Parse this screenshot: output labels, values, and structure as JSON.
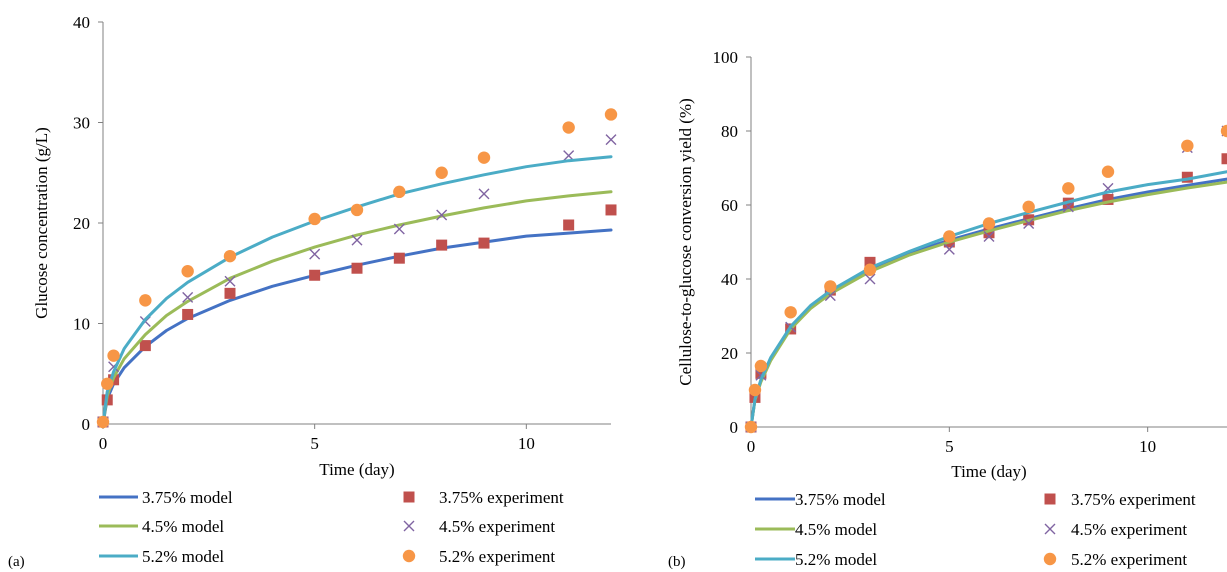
{
  "colors": {
    "s375": "#4472C4",
    "s45": "#9BBB59",
    "s52": "#4BACC6",
    "exp375": "#C0504D",
    "exp45": "#8064A2",
    "exp52": "#F79646"
  },
  "chart_data": [
    {
      "type": "scatter",
      "panel_label": "(a)",
      "title": "",
      "xlabel": "Time (day)",
      "ylabel": "Glucose concentration (g/L)",
      "xlim": [
        0,
        12
      ],
      "ylim": [
        0,
        40
      ],
      "xticks": [
        0,
        5,
        10
      ],
      "yticks": [
        0,
        10,
        20,
        30,
        40
      ],
      "grid": false,
      "legend_position": "bottom",
      "series": [
        {
          "name": "3.75% model",
          "kind": "line",
          "color": "#4472C4",
          "x": [
            0,
            0.1,
            0.25,
            0.5,
            1,
            1.5,
            2,
            3,
            4,
            5,
            6,
            7,
            8,
            9,
            10,
            11,
            12
          ],
          "y": [
            0,
            2.5,
            4.0,
            5.6,
            7.7,
            9.3,
            10.5,
            12.3,
            13.7,
            14.8,
            15.8,
            16.7,
            17.5,
            18.1,
            18.7,
            19.0,
            19.3
          ]
        },
        {
          "name": "3.75% experiment",
          "kind": "square",
          "color": "#C0504D",
          "x": [
            0,
            0.1,
            0.25,
            1,
            2,
            3,
            5,
            6,
            7,
            8,
            9,
            11,
            12
          ],
          "y": [
            0.2,
            2.4,
            4.4,
            7.8,
            10.9,
            13.0,
            14.8,
            15.5,
            16.5,
            17.8,
            18.0,
            19.8,
            21.3
          ]
        },
        {
          "name": "4.5% model",
          "kind": "line",
          "color": "#9BBB59",
          "x": [
            0,
            0.1,
            0.25,
            0.5,
            1,
            1.5,
            2,
            3,
            4,
            5,
            6,
            7,
            8,
            9,
            10,
            11,
            12
          ],
          "y": [
            0,
            2.8,
            4.6,
            6.5,
            8.9,
            10.8,
            12.2,
            14.5,
            16.2,
            17.6,
            18.8,
            19.8,
            20.7,
            21.5,
            22.2,
            22.7,
            23.1
          ]
        },
        {
          "name": "4.5% experiment",
          "kind": "cross",
          "color": "#8064A2",
          "x": [
            0,
            0.25,
            1,
            2,
            3,
            5,
            6,
            7,
            8,
            9,
            11,
            12
          ],
          "y": [
            0.2,
            5.7,
            10.2,
            12.6,
            14.2,
            16.9,
            18.3,
            19.4,
            20.8,
            22.9,
            26.7,
            28.3
          ]
        },
        {
          "name": "5.2% model",
          "kind": "line",
          "color": "#4BACC6",
          "x": [
            0,
            0.1,
            0.25,
            0.5,
            1,
            1.5,
            2,
            3,
            4,
            5,
            6,
            7,
            8,
            9,
            10,
            11,
            12
          ],
          "y": [
            0,
            3.2,
            5.2,
            7.5,
            10.4,
            12.5,
            14.1,
            16.6,
            18.6,
            20.2,
            21.6,
            22.9,
            23.9,
            24.8,
            25.6,
            26.2,
            26.6
          ]
        },
        {
          "name": "5.2% experiment",
          "kind": "circle",
          "color": "#F79646",
          "x": [
            0,
            0.1,
            0.25,
            1,
            2,
            3,
            5,
            6,
            7,
            8,
            9,
            11,
            12
          ],
          "y": [
            0.2,
            4.0,
            6.8,
            12.3,
            15.2,
            16.7,
            20.4,
            21.3,
            23.1,
            25.0,
            26.5,
            29.5,
            30.8
          ]
        }
      ]
    },
    {
      "type": "scatter",
      "panel_label": "(b)",
      "title": "",
      "xlabel": "Time (day)",
      "ylabel": "Cellulose-to-glucose conversion yield  (%)",
      "xlim": [
        0,
        12
      ],
      "ylim": [
        0,
        100
      ],
      "xticks": [
        0,
        5,
        10
      ],
      "yticks": [
        0,
        20,
        40,
        60,
        80,
        100
      ],
      "grid": false,
      "legend_position": "bottom",
      "series": [
        {
          "name": "3.75% model",
          "kind": "line",
          "color": "#4472C4",
          "x": [
            0,
            0.1,
            0.25,
            0.5,
            1,
            1.5,
            2,
            3,
            4,
            5,
            6,
            7,
            8,
            9,
            10,
            11,
            12
          ],
          "y": [
            0,
            7.5,
            12.5,
            18.5,
            27.0,
            32.5,
            36.5,
            42.5,
            47.0,
            50.5,
            53.5,
            56.3,
            59.0,
            61.5,
            63.5,
            65.3,
            67.0
          ]
        },
        {
          "name": "3.75% experiment",
          "kind": "square",
          "color": "#C0504D",
          "x": [
            0,
            0.1,
            0.25,
            1,
            2,
            3,
            5,
            6,
            7,
            8,
            9,
            11,
            12
          ],
          "y": [
            0,
            8.0,
            14.5,
            26.5,
            37.0,
            44.5,
            50.0,
            52.5,
            56.0,
            60.5,
            61.5,
            67.5,
            72.5
          ]
        },
        {
          "name": "4.5% model",
          "kind": "line",
          "color": "#9BBB59",
          "x": [
            0,
            0.1,
            0.25,
            0.5,
            1,
            1.5,
            2,
            3,
            4,
            5,
            6,
            7,
            8,
            9,
            10,
            11,
            12
          ],
          "y": [
            0,
            7.3,
            12.2,
            18.0,
            26.5,
            32.0,
            36.0,
            42.0,
            46.5,
            50.0,
            53.0,
            55.8,
            58.5,
            60.8,
            62.8,
            64.6,
            66.2
          ]
        },
        {
          "name": "4.5% experiment",
          "kind": "cross",
          "color": "#8064A2",
          "x": [
            0,
            0.25,
            1,
            2,
            3,
            5,
            6,
            7,
            8,
            9,
            11,
            12
          ],
          "y": [
            0,
            14.0,
            27.0,
            35.5,
            40.0,
            48.0,
            51.5,
            55.0,
            59.5,
            64.5,
            75.5,
            80.0
          ]
        },
        {
          "name": "5.2% model",
          "kind": "line",
          "color": "#4BACC6",
          "x": [
            0,
            0.1,
            0.25,
            0.5,
            1,
            1.5,
            2,
            3,
            4,
            5,
            6,
            7,
            8,
            9,
            10,
            11,
            12
          ],
          "y": [
            0,
            7.6,
            12.8,
            18.8,
            27.2,
            32.8,
            36.8,
            43.0,
            47.5,
            51.5,
            55.0,
            58.0,
            60.8,
            63.5,
            65.5,
            67.0,
            69.0
          ]
        },
        {
          "name": "5.2% experiment",
          "kind": "circle",
          "color": "#F79646",
          "x": [
            0,
            0.1,
            0.25,
            1,
            2,
            3,
            5,
            6,
            7,
            8,
            9,
            11,
            12
          ],
          "y": [
            0,
            10.0,
            16.5,
            31.0,
            38.0,
            42.5,
            51.5,
            55.0,
            59.5,
            64.5,
            69.0,
            76.0,
            80.0
          ]
        }
      ]
    }
  ]
}
